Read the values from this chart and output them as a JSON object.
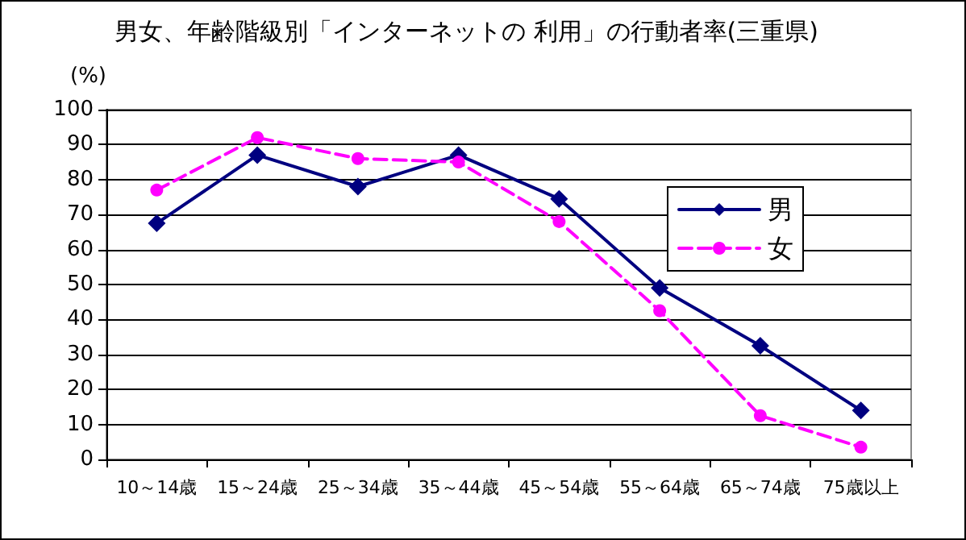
{
  "chart_data": {
    "type": "line",
    "title": "男女、年齢階級別「インターネットの 利用」の行動者率(三重県)",
    "ylabel": "(%)",
    "categories": [
      "10～14歳",
      "15～24歳",
      "25～34歳",
      "35～44歳",
      "45～54歳",
      "55～64歳",
      "65～74歳",
      "75歳以上"
    ],
    "series": [
      {
        "name": "男",
        "color": "#000080",
        "marker": "diamond",
        "line_style": "solid",
        "values": [
          67.5,
          87,
          78,
          87,
          74.5,
          49,
          32.5,
          14
        ]
      },
      {
        "name": "女",
        "color": "#ff00ff",
        "marker": "circle",
        "line_style": "dashed",
        "values": [
          77,
          92,
          86,
          85,
          68,
          42.5,
          12.5,
          3.5
        ]
      }
    ],
    "ylim": [
      0,
      100
    ],
    "yticks": [
      0,
      10,
      20,
      30,
      40,
      50,
      60,
      70,
      80,
      90,
      100
    ],
    "grid": "y",
    "legend": "right"
  }
}
